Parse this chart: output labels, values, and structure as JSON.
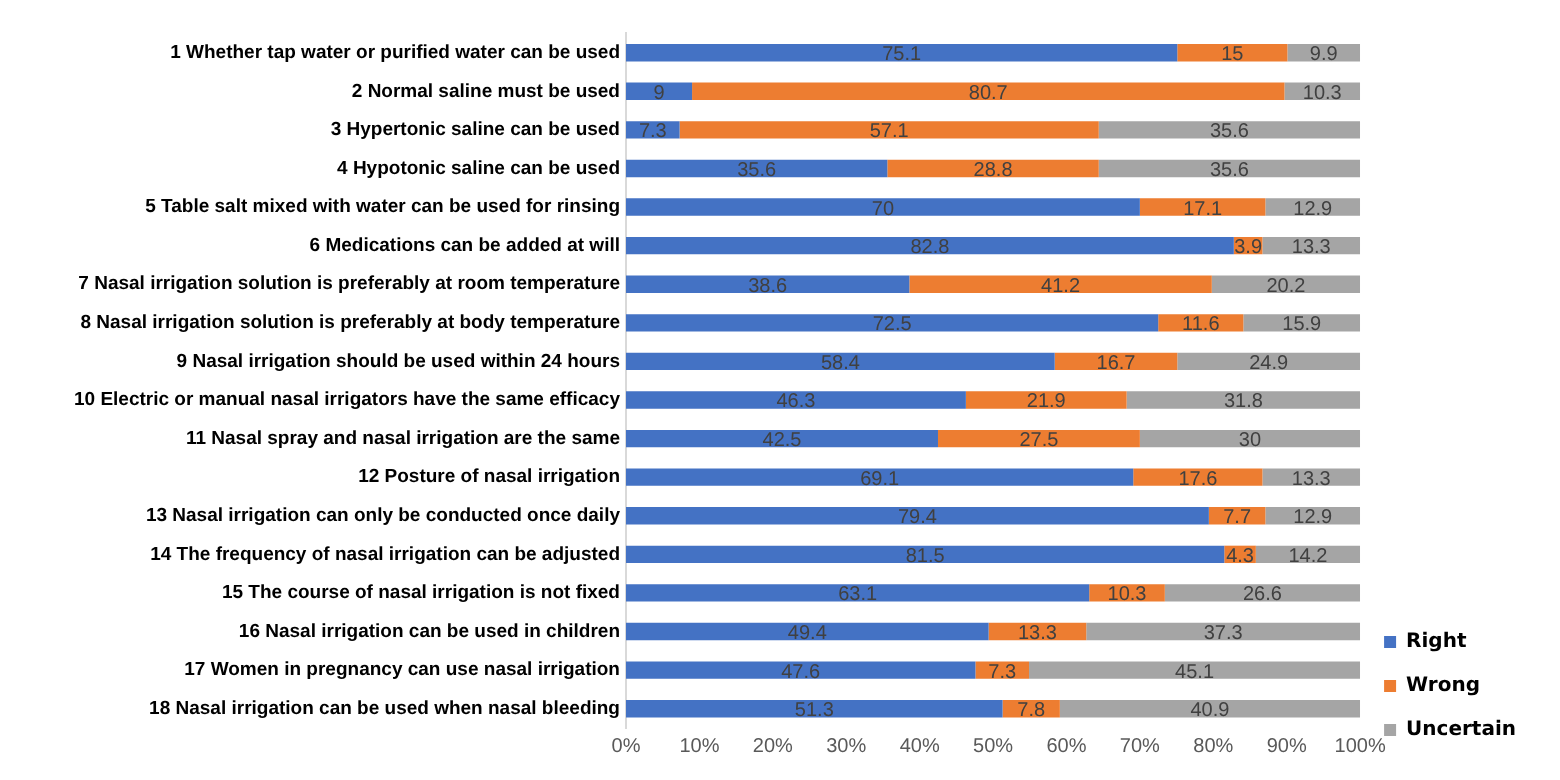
{
  "chart_data": {
    "type": "bar",
    "orientation": "horizontal",
    "stacked": true,
    "categories": [
      "1 Whether tap water or purified water can be used",
      "2 Normal saline must be used",
      "3 Hypertonic saline can be used",
      "4 Hypotonic saline can be used",
      "5 Table salt mixed with water can be used for rinsing",
      "6 Medications can be added at will",
      "7 Nasal irrigation solution is preferably at room temperature",
      "8 Nasal irrigation solution is preferably at body temperature",
      "9 Nasal irrigation should be used within 24 hours",
      "10 Electric or manual nasal irrigators have the same efficacy",
      "11 Nasal spray and nasal irrigation are the same",
      "12 Posture of nasal irrigation",
      "13 Nasal irrigation can only be conducted once daily",
      "14 The frequency of nasal irrigation can be adjusted",
      "15 The course of nasal irrigation is not fixed",
      "16 Nasal irrigation can be used in children",
      "17 Women in pregnancy can use nasal irrigation",
      "18 Nasal irrigation can be used when nasal bleeding"
    ],
    "series": [
      {
        "name": "Right",
        "color": "#4472c4",
        "values": [
          75.1,
          9,
          7.3,
          35.6,
          70,
          82.8,
          38.6,
          72.5,
          58.4,
          46.3,
          42.5,
          69.1,
          79.4,
          81.5,
          63.1,
          49.4,
          47.6,
          51.3
        ]
      },
      {
        "name": "Wrong",
        "color": "#ed7d31",
        "values": [
          15,
          80.7,
          57.1,
          28.8,
          17.1,
          3.9,
          41.2,
          11.6,
          16.7,
          21.9,
          27.5,
          17.6,
          7.7,
          4.3,
          10.3,
          13.3,
          7.3,
          7.8
        ]
      },
      {
        "name": "Uncertain",
        "color": "#a5a5a5",
        "values": [
          9.9,
          10.3,
          35.6,
          35.6,
          12.9,
          13.3,
          20.2,
          15.9,
          24.9,
          31.8,
          30,
          13.3,
          12.9,
          14.2,
          26.6,
          37.3,
          45.1,
          40.9
        ]
      }
    ],
    "xlim": [
      0,
      100
    ],
    "xticks": [
      {
        "value": 0,
        "label": "0%"
      },
      {
        "value": 10,
        "label": "10%"
      },
      {
        "value": 20,
        "label": "20%"
      },
      {
        "value": 30,
        "label": "30%"
      },
      {
        "value": 40,
        "label": "40%"
      },
      {
        "value": 50,
        "label": "50%"
      },
      {
        "value": 60,
        "label": "60%"
      },
      {
        "value": 70,
        "label": "70%"
      },
      {
        "value": 80,
        "label": "80%"
      },
      {
        "value": 90,
        "label": "90%"
      },
      {
        "value": 100,
        "label": "100%"
      }
    ],
    "data_labels": true,
    "grid": false,
    "legend": "bottom right"
  }
}
